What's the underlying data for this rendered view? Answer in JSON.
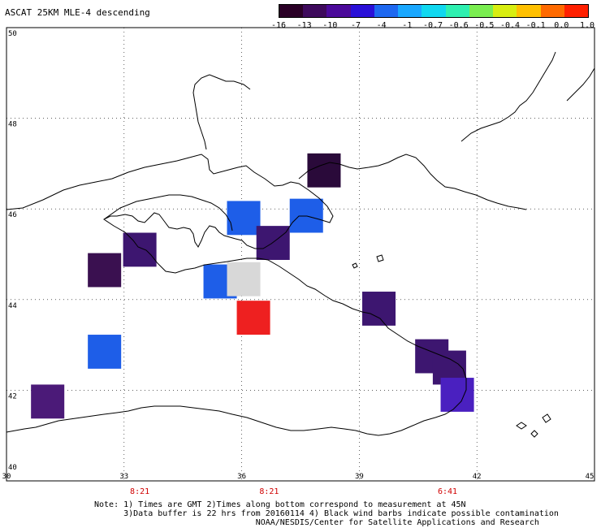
{
  "title": "ASCAT 25KM MLE-4 descending",
  "colorbar": {
    "labels": [
      "-16",
      "-13",
      "-10",
      "-7",
      "-4",
      "-1",
      "-0.7",
      "-0.6",
      "-0.5",
      "-0.4",
      "-0.1",
      "0.0",
      "1.0"
    ],
    "colors": [
      "#2a0026",
      "#3e0a5c",
      "#4b0a9a",
      "#2a10d8",
      "#1e68f0",
      "#1aa8ff",
      "#10d8f0",
      "#2ef0b0",
      "#7aee50",
      "#d8ee10",
      "#ffc000",
      "#ff6a00",
      "#ff2000"
    ]
  },
  "map": {
    "lon_labels": [
      "30",
      "33",
      "36",
      "39",
      "42",
      "45"
    ],
    "lat_labels": [
      "50",
      "48",
      "46",
      "44",
      "42",
      "40"
    ],
    "lon_range": [
      30,
      45
    ],
    "lat_range": [
      40,
      50
    ],
    "grid": "dotted"
  },
  "cells": [
    {
      "lon": 31.05,
      "lat": 41.75,
      "color": "#4b1a78"
    },
    {
      "lon": 32.5,
      "lat": 44.65,
      "color": "#3a1050"
    },
    {
      "lon": 32.5,
      "lat": 42.85,
      "color": "#1e5ee8"
    },
    {
      "lon": 33.4,
      "lat": 45.1,
      "color": "#3d1670"
    },
    {
      "lon": 35.45,
      "lat": 44.4,
      "color": "#1e5ee8"
    },
    {
      "lon": 36.05,
      "lat": 44.45,
      "color": "#d8d8d8"
    },
    {
      "lon": 36.3,
      "lat": 43.6,
      "color": "#ee2020"
    },
    {
      "lon": 36.05,
      "lat": 45.8,
      "color": "#1e5ee8"
    },
    {
      "lon": 36.8,
      "lat": 45.25,
      "color": "#3d1670"
    },
    {
      "lon": 37.65,
      "lat": 45.85,
      "color": "#1e5ee8"
    },
    {
      "lon": 38.1,
      "lat": 46.85,
      "color": "#2a0a3a"
    },
    {
      "lon": 39.5,
      "lat": 43.8,
      "color": "#3d1670"
    },
    {
      "lon": 40.85,
      "lat": 42.75,
      "color": "#3d1670"
    },
    {
      "lon": 41.3,
      "lat": 42.5,
      "color": "#3d1670"
    },
    {
      "lon": 41.5,
      "lat": 41.9,
      "color": "#4a20c0"
    }
  ],
  "overpass_times": [
    {
      "lon": 33.4,
      "label": "8:21"
    },
    {
      "lon": 36.7,
      "label": "8:21"
    },
    {
      "lon": 41.25,
      "label": "6:41"
    }
  ],
  "note": {
    "line1": "Note: 1) Times are GMT 2)Times along bottom correspond to measurement at 45N",
    "line2": "3)Data buffer is 22 hrs from 20160114 4) Black wind barbs indicate possible contamination",
    "line3": "NOAA/NESDIS/Center for Satellite Applications and Research"
  }
}
